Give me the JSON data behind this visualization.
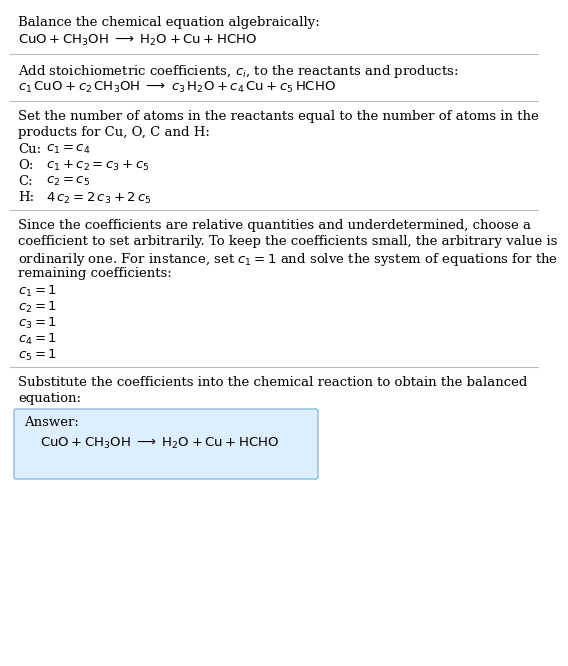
{
  "bg_color": "#ffffff",
  "text_color": "#000000",
  "section1_title": "Balance the chemical equation algebraically:",
  "section2_title": "Add stoichiometric coefficients, $c_i$, to the reactants and products:",
  "section3_title_line1": "Set the number of atoms in the reactants equal to the number of atoms in the",
  "section3_title_line2": "products for Cu, O, C and H:",
  "section4_title_line1": "Since the coefficients are relative quantities and underdetermined, choose a",
  "section4_title_line2": "coefficient to set arbitrarily. To keep the coefficients small, the arbitrary value is",
  "section4_title_line3": "ordinarily one. For instance, set $c_1 = 1$ and solve the system of equations for the",
  "section4_title_line4": "remaining coefficients:",
  "section5_title_line1": "Substitute the coefficients into the chemical reaction to obtain the balanced",
  "section5_title_line2": "equation:",
  "answer_label": "Answer:",
  "answer_box_color": "#ddeeff",
  "answer_box_border": "#88bbdd",
  "font_size": 9.5,
  "font_size_eq": 9.5
}
